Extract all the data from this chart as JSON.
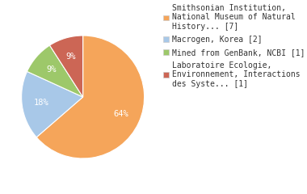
{
  "labels": [
    "Smithsonian Institution,\nNational Museum of Natural\nHistory... [7]",
    "Macrogen, Korea [2]",
    "Mined from GenBank, NCBI [1]",
    "Laboratoire Ecologie,\nEnvironnement, Interactions\ndes Syste... [1]"
  ],
  "values": [
    7,
    2,
    1,
    1
  ],
  "colors": [
    "#F5A55A",
    "#A8C8E8",
    "#9DC86A",
    "#CC6655"
  ],
  "background_color": "#ffffff",
  "text_color": "#ffffff",
  "legend_fontsize": 7.0,
  "autopct_fontsize": 7.5
}
